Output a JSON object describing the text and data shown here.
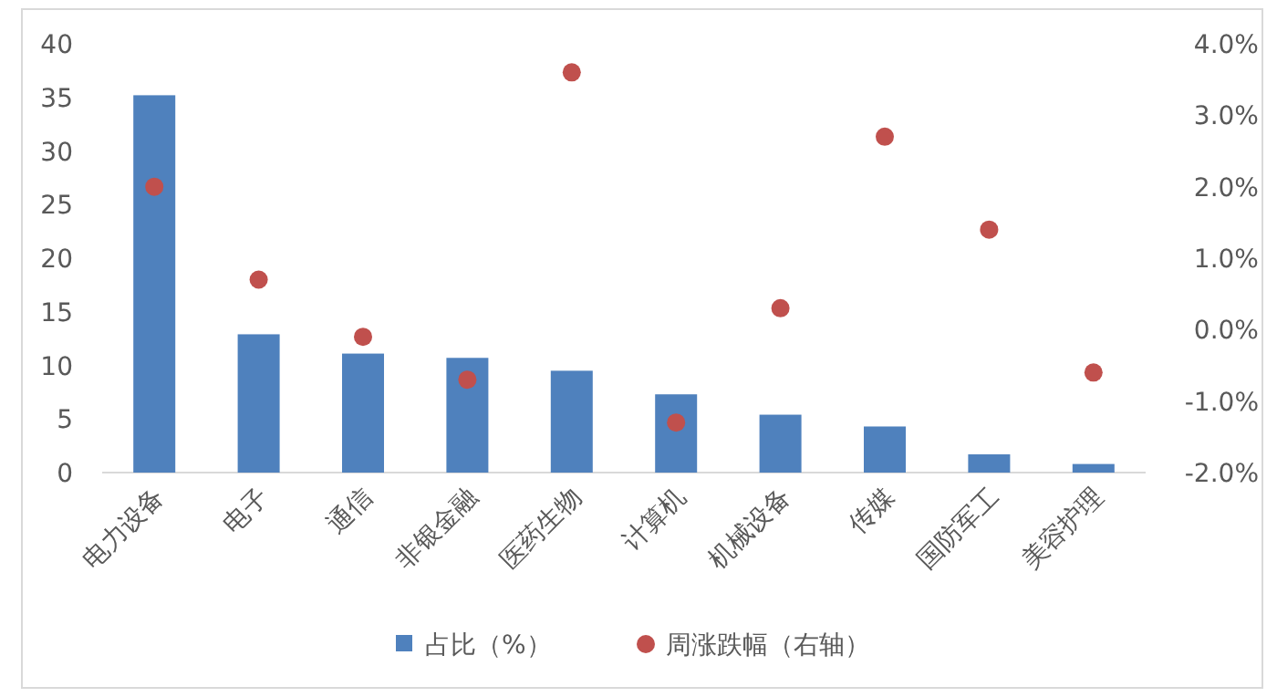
{
  "chart_data": {
    "type": "bar",
    "categories": [
      "电力设备",
      "电子",
      "通信",
      "非银金融",
      "医药生物",
      "计算机",
      "机械设备",
      "传媒",
      "国防军工",
      "美容护理"
    ],
    "series": [
      {
        "name": "占比（%）",
        "color": "#4f81bd",
        "values": [
          35.2,
          12.9,
          11.1,
          10.7,
          9.5,
          7.3,
          5.4,
          4.3,
          1.7,
          0.8
        ]
      },
      {
        "name": "周涨跌幅（右轴）",
        "type": "scatter",
        "axis": "y2",
        "marker": "circle",
        "color": "#c0504d",
        "values": [
          2.0,
          0.7,
          -0.1,
          -0.7,
          3.6,
          -1.3,
          0.3,
          2.7,
          1.4,
          -0.6
        ]
      }
    ],
    "ylim": [
      0,
      40
    ],
    "yticks": [
      0,
      5,
      10,
      15,
      20,
      25,
      30,
      35,
      40
    ],
    "y2lim": [
      -2,
      4
    ],
    "y2ticks": [
      {
        "value": -2,
        "label": "-2.0%"
      },
      {
        "value": -1,
        "label": "-1.0%"
      },
      {
        "value": 0,
        "label": "0.0%"
      },
      {
        "value": 1,
        "label": "1.0%"
      },
      {
        "value": 2,
        "label": "2.0%"
      },
      {
        "value": 3,
        "label": "3.0%"
      },
      {
        "value": 4,
        "label": "4.0%"
      }
    ],
    "legend": "bottom"
  }
}
